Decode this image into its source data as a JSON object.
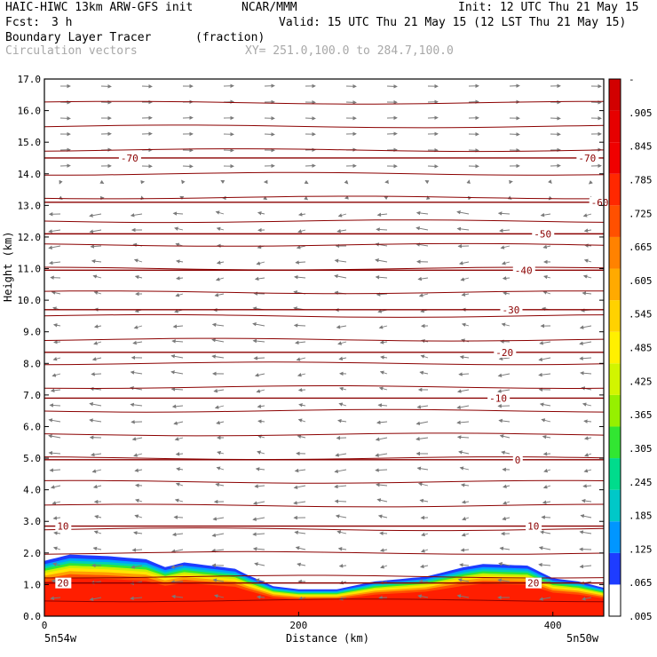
{
  "header": {
    "model": "HAIC-HIWC 13km ARW-GFS init",
    "org": "NCAR/MMM",
    "init": "Init: 12 UTC Thu 21 May 15",
    "fcst_label": "Fcst:",
    "fcst_value": "3 h",
    "valid": "Valid: 15 UTC Thu 21 May 15 (12 LST Thu 21 May 15)",
    "field_name": "Boundary Layer Tracer",
    "field_units": "(fraction)",
    "vectors": "Circulation vectors",
    "xy": "XY= 251.0,100.0 to 284.7,100.0"
  },
  "axes": {
    "ylabel": "Height (km)",
    "xlabel": "Distance (km)",
    "x_left_label": "5n54w",
    "x_right_label": "5n50w"
  },
  "colorbar": {
    "labels": [
      "-",
      ".905",
      ".845",
      ".785",
      ".725",
      ".665",
      ".605",
      ".545",
      ".485",
      ".425",
      ".365",
      ".305",
      ".245",
      ".185",
      ".125",
      ".065",
      ".005"
    ],
    "colors": [
      "#ffffff",
      "#1e3cff",
      "#0096ff",
      "#00c8c8",
      "#00dc8c",
      "#32e632",
      "#96f000",
      "#d2f500",
      "#fff000",
      "#ffd200",
      "#ffaa00",
      "#ff8200",
      "#ff5000",
      "#ff2800",
      "#f00000",
      "#e60000",
      "#d20000"
    ]
  },
  "chart_data": {
    "type": "cross-section",
    "x_range_km": [
      0,
      440
    ],
    "y_range_km": [
      0,
      17
    ],
    "x_ticks": [
      0,
      200,
      400
    ],
    "y_ticks": [
      "0.0",
      "1.0",
      "2.0",
      "3.0",
      "4.0",
      "5.0",
      "6.0",
      "7.0",
      "8.0",
      "9.0",
      "10.0",
      "11.0",
      "12.0",
      "13.0",
      "14.0",
      "15.0",
      "16.0",
      "17.0"
    ],
    "tracer_top_km": {
      "x": [
        0,
        20,
        50,
        80,
        95,
        110,
        130,
        150,
        160,
        180,
        200,
        230,
        260,
        300,
        330,
        345,
        380,
        400,
        420,
        440
      ],
      "top": [
        1.75,
        1.95,
        1.9,
        1.8,
        1.55,
        1.7,
        1.6,
        1.5,
        1.3,
        0.95,
        0.85,
        0.85,
        1.1,
        1.25,
        1.55,
        1.65,
        1.6,
        1.2,
        1.1,
        0.9
      ]
    },
    "temperature_contours": [
      {
        "label": "-70",
        "height_km": 14.5
      },
      {
        "label": "-60",
        "height_km": 13.1
      },
      {
        "label": "-50",
        "height_km": 12.1
      },
      {
        "label": "-40",
        "height_km": 10.95
      },
      {
        "label": "-30",
        "height_km": 9.7
      },
      {
        "label": "-20",
        "height_km": 8.35
      },
      {
        "label": "-10",
        "height_km": 6.9
      },
      {
        "label": "0",
        "height_km": 4.95
      },
      {
        "label": "10",
        "height_km": 2.85
      },
      {
        "label": "20",
        "height_km": 1.05
      }
    ]
  }
}
